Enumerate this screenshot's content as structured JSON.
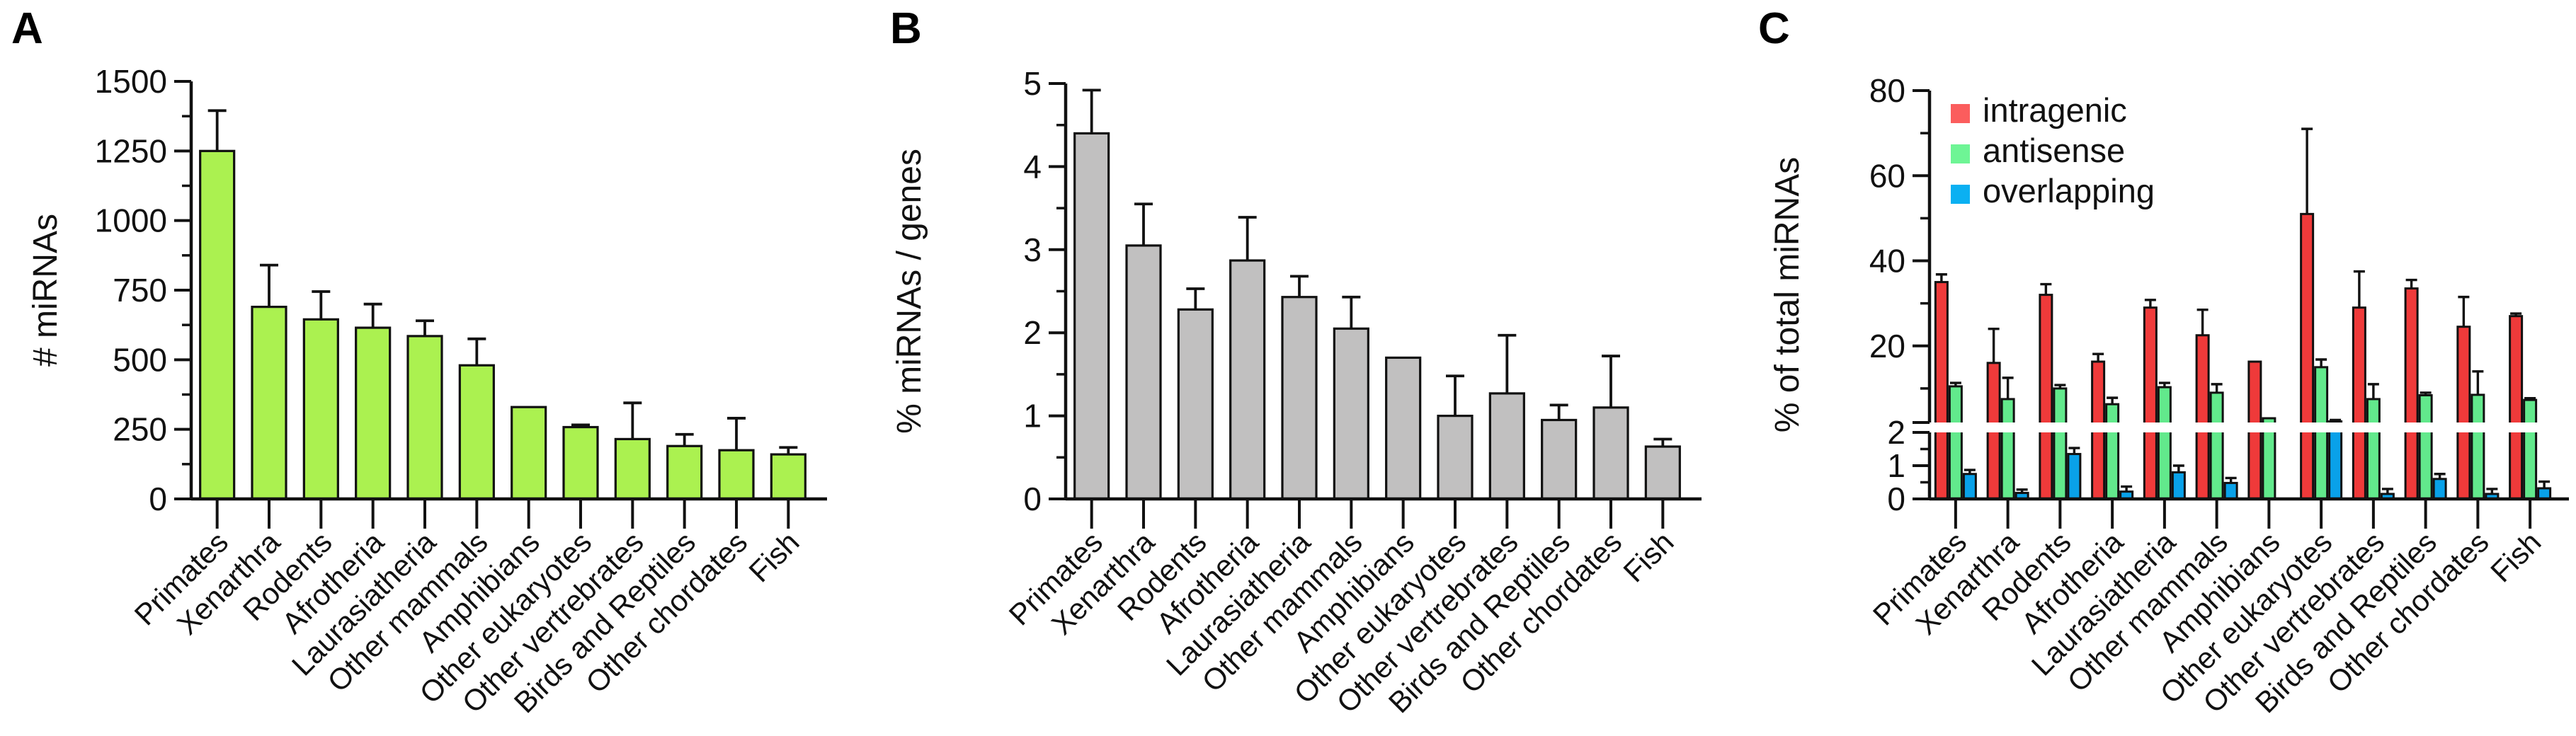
{
  "figure": {
    "background": "#ffffff",
    "ink_color": "#111111",
    "categories": [
      "Primates",
      "Xenarthra",
      "Rodents",
      "Afrotheria",
      "Laurasiatheria",
      "Other mammals",
      "Amphibians",
      "Other eukaryotes",
      "Other vertrebrates",
      "Birds and Reptiles",
      "Other chordates",
      "Fish"
    ],
    "panels": [
      {
        "letter": "A"
      },
      {
        "letter": "B"
      },
      {
        "letter": "C"
      }
    ]
  },
  "chart_data": [
    {
      "id": "A",
      "type": "bar",
      "title": "",
      "ylabel": "# miRNAs",
      "xlabel": "",
      "categories": [
        "Primates",
        "Xenarthra",
        "Rodents",
        "Afrotheria",
        "Laurasiatheria",
        "Other mammals",
        "Amphibians",
        "Other eukaryotes",
        "Other vertrebrates",
        "Birds and Reptiles",
        "Other chordates",
        "Fish"
      ],
      "values": [
        1250,
        690,
        645,
        615,
        585,
        480,
        330,
        258,
        215,
        190,
        175,
        160
      ],
      "errors_plus": [
        145,
        150,
        100,
        85,
        55,
        95,
        0,
        8,
        130,
        42,
        115,
        25
      ],
      "ylim": [
        0,
        1500
      ],
      "ytick_major": 250,
      "ytick_minor": 125,
      "grid": false,
      "bar_color": "#abf150",
      "bar_outline": "#111111"
    },
    {
      "id": "B",
      "type": "bar",
      "title": "",
      "ylabel": "% miRNAs / genes",
      "xlabel": "",
      "categories": [
        "Primates",
        "Xenarthra",
        "Rodents",
        "Afrotheria",
        "Laurasiatheria",
        "Other mammals",
        "Amphibians",
        "Other eukaryotes",
        "Other vertrebrates",
        "Birds and Reptiles",
        "Other chordates",
        "Fish"
      ],
      "values": [
        4.4,
        3.05,
        2.28,
        2.87,
        2.43,
        2.05,
        1.7,
        1.0,
        1.27,
        0.95,
        1.1,
        0.63
      ],
      "errors_plus": [
        0.52,
        0.5,
        0.25,
        0.52,
        0.25,
        0.38,
        0,
        0.48,
        0.7,
        0.18,
        0.62,
        0.09
      ],
      "ylim": [
        0,
        5
      ],
      "ytick_major": 1,
      "ytick_minor": 0.5,
      "grid": false,
      "bar_color": "#c1c0c0",
      "bar_outline": "#111111"
    },
    {
      "id": "C",
      "type": "grouped-bar-broken-axis",
      "title": "",
      "ylabel": "% of total miRNAs",
      "xlabel": "",
      "categories": [
        "Primates",
        "Xenarthra",
        "Rodents",
        "Afrotheria",
        "Laurasiatheria",
        "Other mammals",
        "Amphibians",
        "Other eukaryotes",
        "Other vertrebrates",
        "Birds and Reptiles",
        "Other chordates",
        "Fish"
      ],
      "series": [
        {
          "name": "intragenic",
          "color": "#ef3a3a",
          "legend_color": "#fb5d5d",
          "values": [
            35,
            16,
            32,
            16.3,
            29,
            22.5,
            16.3,
            51,
            29,
            33.5,
            24.5,
            27
          ],
          "errors_plus": [
            1.8,
            8,
            2.5,
            1.8,
            1.8,
            6,
            0,
            20,
            8.5,
            2,
            7,
            0.6
          ]
        },
        {
          "name": "antisense",
          "color": "#62e98c",
          "legend_color": "#6ef595",
          "values": [
            10.5,
            7.5,
            10,
            6.3,
            10.3,
            9,
            3,
            15,
            7.5,
            8.4,
            8.5,
            7.3
          ],
          "errors_plus": [
            0.8,
            5,
            0.8,
            1.5,
            1,
            2,
            0,
            1.8,
            3.5,
            0.6,
            5.5,
            0.4
          ]
        },
        {
          "name": "overlapping",
          "color": "#09a1e9",
          "legend_color": "#0bb0f2",
          "values": [
            0.75,
            0.18,
            1.35,
            0.22,
            0.8,
            0.48,
            0,
            2.25,
            0.15,
            0.6,
            0.15,
            0.32
          ],
          "errors_plus": [
            0.12,
            0.1,
            0.18,
            0.15,
            0.2,
            0.15,
            0,
            0.35,
            0.15,
            0.15,
            0.15,
            0.2
          ]
        }
      ],
      "break_value": 2,
      "lower_lim": [
        0,
        2
      ],
      "upper_lim": [
        2,
        80
      ],
      "lower_ticks": [
        0,
        1,
        2
      ],
      "lower_minor_ticks": [
        0.5,
        1.5
      ],
      "upper_ticks": [
        20,
        40,
        60,
        80
      ],
      "upper_minor_ticks": [
        10,
        30,
        50,
        70
      ],
      "grid": false,
      "legend_position": "top-left",
      "legend": [
        "intragenic",
        "antisense",
        "overlapping"
      ]
    }
  ]
}
